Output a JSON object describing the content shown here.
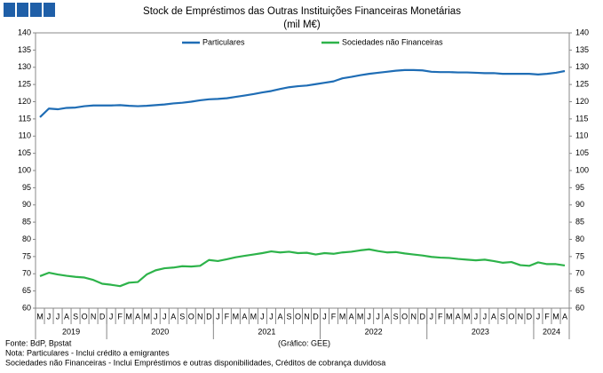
{
  "chart_data": {
    "type": "line",
    "title": "Stock de Empréstimos das Outras Instituições Financeiras Monetárias",
    "subtitle": "(mil M€)",
    "categories": [
      "M",
      "J",
      "J",
      "A",
      "S",
      "O",
      "N",
      "D",
      "J",
      "F",
      "M",
      "A",
      "M",
      "J",
      "J",
      "A",
      "S",
      "O",
      "N",
      "D",
      "J",
      "F",
      "M",
      "A",
      "M",
      "J",
      "J",
      "A",
      "S",
      "O",
      "N",
      "D",
      "J",
      "F",
      "M",
      "A",
      "M",
      "J",
      "J",
      "A",
      "S",
      "O",
      "N",
      "D",
      "J",
      "F",
      "M",
      "A",
      "M",
      "J",
      "J",
      "A",
      "S",
      "O",
      "N",
      "D",
      "J",
      "F",
      "M",
      "A"
    ],
    "x_groups": [
      {
        "label": "2019",
        "count": 8
      },
      {
        "label": "2020",
        "count": 12
      },
      {
        "label": "2021",
        "count": 12
      },
      {
        "label": "2022",
        "count": 12
      },
      {
        "label": "2023",
        "count": 12
      },
      {
        "label": "2024",
        "count": 4
      }
    ],
    "series": [
      {
        "name": "Particulares",
        "color": "#1f6db5",
        "values": [
          115.5,
          118,
          117.8,
          118.2,
          118.3,
          118.7,
          118.9,
          118.9,
          118.9,
          119,
          118.8,
          118.7,
          118.8,
          119,
          119.2,
          119.5,
          119.7,
          120,
          120.4,
          120.7,
          120.8,
          121,
          121.4,
          121.8,
          122.2,
          122.7,
          123.1,
          123.7,
          124.2,
          124.5,
          124.7,
          125.1,
          125.5,
          125.9,
          126.8,
          127.2,
          127.7,
          128.1,
          128.4,
          128.7,
          129,
          129.2,
          129.2,
          129.1,
          128.7,
          128.6,
          128.6,
          128.5,
          128.5,
          128.4,
          128.3,
          128.3,
          128.1,
          128.1,
          128.1,
          128.1,
          127.9,
          128.1,
          128.4,
          128.9
        ]
      },
      {
        "name": "Sociedades não Financeiras",
        "color": "#2db34a",
        "values": [
          69.3,
          70.3,
          69.8,
          69.4,
          69.1,
          68.9,
          68.2,
          67.1,
          66.8,
          66.4,
          67.4,
          67.6,
          69.8,
          71,
          71.6,
          71.8,
          72.2,
          72.1,
          72.3,
          74,
          73.7,
          74.2,
          74.8,
          75.2,
          75.6,
          76,
          76.5,
          76.2,
          76.4,
          76,
          76.1,
          75.6,
          76,
          75.8,
          76.2,
          76.4,
          76.8,
          77.1,
          76.6,
          76.2,
          76.3,
          75.9,
          75.6,
          75.3,
          74.9,
          74.7,
          74.6,
          74.3,
          74.1,
          73.9,
          74.1,
          73.7,
          73.2,
          73.4,
          72.5,
          72.3,
          73.3,
          72.8,
          72.8,
          72.4
        ]
      }
    ],
    "ylim": [
      60,
      140
    ],
    "yticks": [
      60,
      65,
      70,
      75,
      80,
      85,
      90,
      95,
      100,
      105,
      110,
      115,
      120,
      125,
      130,
      135,
      140
    ],
    "y2lim": [
      60,
      140
    ],
    "y2ticks": [
      60,
      65,
      70,
      75,
      80,
      85,
      90,
      95,
      100,
      105,
      110,
      115,
      120,
      125,
      130,
      135,
      140
    ],
    "grid": false,
    "legend": "top",
    "source": "Fonte: BdP, Bpstat",
    "credit": "(Gráfico: GEE)",
    "notes": [
      "Nota: Particulares - Inclui crédito a emigrantes",
      "Sociedades não Financeiras - Inclui Empréstimos e outras disponibilidades,  Créditos de cobrança duvidosa"
    ]
  }
}
